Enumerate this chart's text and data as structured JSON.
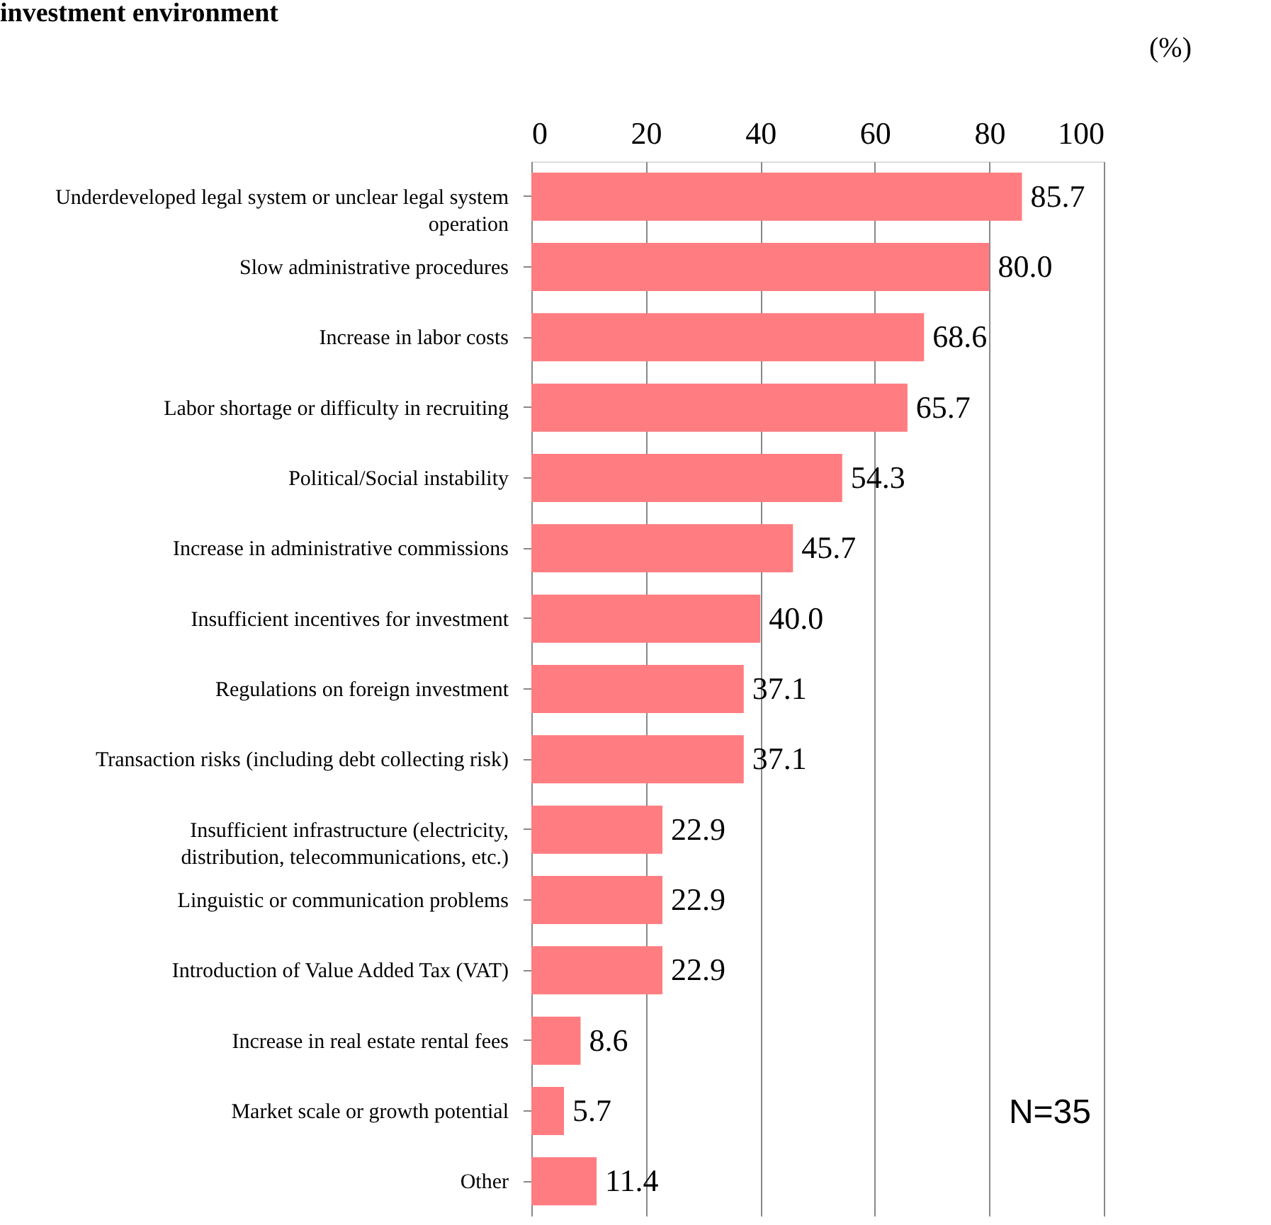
{
  "chart_data": {
    "type": "bar",
    "orientation": "horizontal",
    "title": "investment environment",
    "xlabel": "(%)",
    "categories": [
      "Underdeveloped legal system or unclear legal system operation",
      "Slow administrative procedures",
      "Increase in labor costs",
      "Labor shortage or difficulty in recruiting",
      "Political/Social instability",
      "Increase in administrative commissions",
      "Insufficient incentives for investment",
      "Regulations on foreign investment",
      "Transaction risks (including debt collecting risk)",
      "Insufficient infrastructure (electricity, distribution, telecommunications, etc.)",
      "Linguistic or communication problems",
      "Introduction of Value Added Tax (VAT)",
      "Increase in real estate rental fees",
      "Market scale or growth potential",
      "Other"
    ],
    "values": [
      85.7,
      80.0,
      68.6,
      65.7,
      54.3,
      45.7,
      40.0,
      37.1,
      37.1,
      22.9,
      22.9,
      22.9,
      8.6,
      5.7,
      11.4
    ],
    "value_labels": [
      "85.7",
      "80.0",
      "68.6",
      "65.7",
      "54.3",
      "45.7",
      "40.0",
      "37.1",
      "37.1",
      "22.9",
      "22.9",
      "22.9",
      "8.6",
      "5.7",
      "11.4"
    ],
    "color": "#ff7c80",
    "xlim": [
      0,
      100
    ],
    "xticks": [
      0,
      20,
      40,
      60,
      80,
      100
    ],
    "grid": "x",
    "annotations": [
      "N=35"
    ]
  }
}
